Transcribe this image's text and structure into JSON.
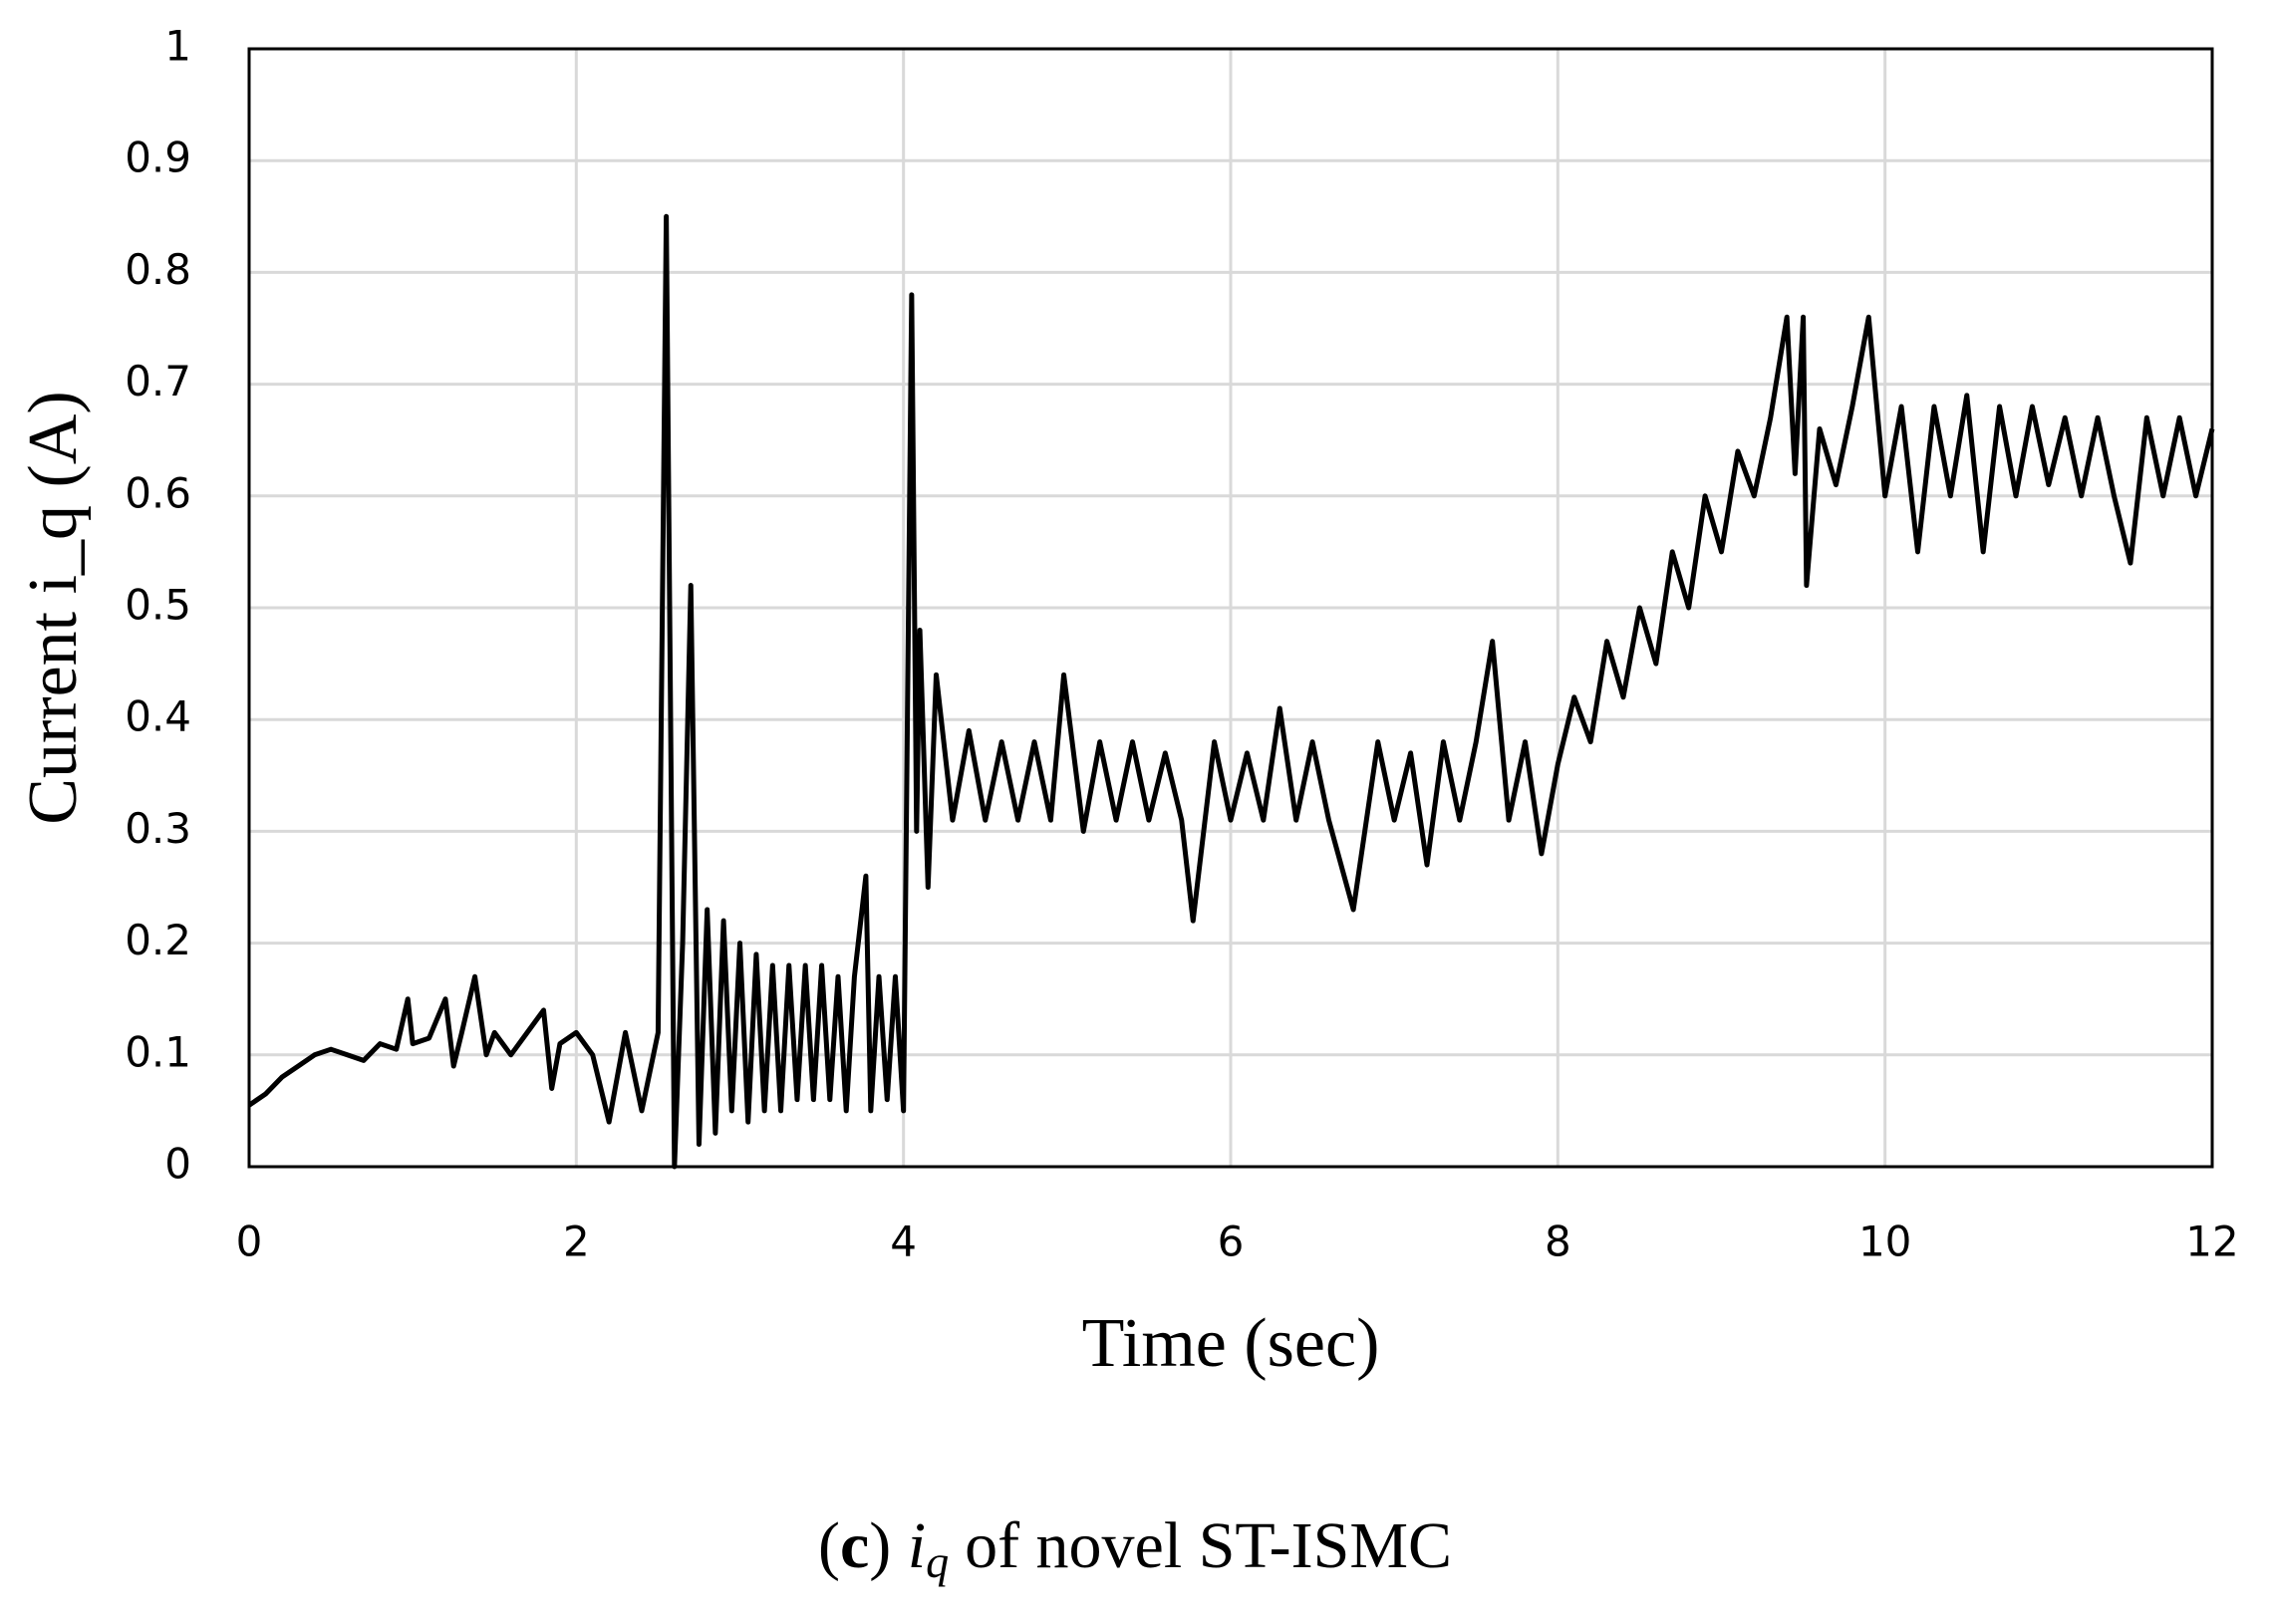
{
  "chart_data": {
    "type": "line",
    "xlabel": "Time (sec)",
    "ylabel": "Current i_q (A)",
    "caption": {
      "open": "(",
      "label": "c",
      "close": ")",
      "symbol": "i",
      "subscript": "q",
      "rest": "of novel ST-ISMC"
    },
    "x": [
      0,
      0.1,
      0.2,
      0.3,
      0.4,
      0.5,
      0.6,
      0.7,
      0.8,
      0.9,
      0.97,
      1.0,
      1.1,
      1.2,
      1.25,
      1.3,
      1.38,
      1.45,
      1.5,
      1.6,
      1.7,
      1.8,
      1.85,
      1.9,
      2.0,
      2.1,
      2.2,
      2.3,
      2.4,
      2.5,
      2.55,
      2.6,
      2.65,
      2.7,
      2.75,
      2.8,
      2.85,
      2.9,
      2.95,
      3.0,
      3.05,
      3.1,
      3.15,
      3.2,
      3.25,
      3.3,
      3.35,
      3.4,
      3.45,
      3.5,
      3.55,
      3.6,
      3.65,
      3.7,
      3.77,
      3.8,
      3.85,
      3.9,
      3.95,
      4.0,
      4.05,
      4.08,
      4.1,
      4.15,
      4.2,
      4.3,
      4.4,
      4.5,
      4.6,
      4.7,
      4.8,
      4.9,
      4.98,
      5.1,
      5.2,
      5.3,
      5.4,
      5.5,
      5.6,
      5.7,
      5.77,
      5.9,
      6.0,
      6.1,
      6.2,
      6.3,
      6.4,
      6.5,
      6.6,
      6.75,
      6.9,
      7.0,
      7.1,
      7.2,
      7.3,
      7.4,
      7.5,
      7.6,
      7.7,
      7.8,
      7.9,
      8.0,
      8.1,
      8.2,
      8.3,
      8.4,
      8.5,
      8.6,
      8.7,
      8.8,
      8.9,
      9.0,
      9.1,
      9.2,
      9.3,
      9.4,
      9.45,
      9.5,
      9.52,
      9.6,
      9.7,
      9.8,
      9.9,
      10.0,
      10.1,
      10.2,
      10.3,
      10.4,
      10.5,
      10.6,
      10.7,
      10.8,
      10.9,
      11.0,
      11.1,
      11.2,
      11.3,
      11.4,
      11.5,
      11.6,
      11.7,
      11.8,
      11.9,
      12.0
    ],
    "series": [
      {
        "color": "#000000",
        "values": [
          0.055,
          0.065,
          0.08,
          0.09,
          0.1,
          0.105,
          0.1,
          0.095,
          0.11,
          0.105,
          0.15,
          0.11,
          0.115,
          0.15,
          0.09,
          0.12,
          0.17,
          0.1,
          0.12,
          0.1,
          0.12,
          0.14,
          0.07,
          0.11,
          0.12,
          0.1,
          0.04,
          0.12,
          0.05,
          0.12,
          0.85,
          0,
          0.2,
          0.52,
          0.02,
          0.23,
          0.03,
          0.22,
          0.05,
          0.2,
          0.04,
          0.19,
          0.05,
          0.18,
          0.05,
          0.18,
          0.06,
          0.18,
          0.06,
          0.18,
          0.06,
          0.17,
          0.05,
          0.17,
          0.26,
          0.05,
          0.17,
          0.06,
          0.17,
          0.05,
          0.78,
          0.3,
          0.48,
          0.25,
          0.44,
          0.31,
          0.39,
          0.31,
          0.38,
          0.31,
          0.38,
          0.31,
          0.44,
          0.3,
          0.38,
          0.31,
          0.38,
          0.31,
          0.37,
          0.31,
          0.22,
          0.38,
          0.31,
          0.37,
          0.31,
          0.41,
          0.31,
          0.38,
          0.31,
          0.23,
          0.38,
          0.31,
          0.37,
          0.27,
          0.38,
          0.31,
          0.38,
          0.47,
          0.31,
          0.38,
          0.28,
          0.36,
          0.42,
          0.38,
          0.47,
          0.42,
          0.5,
          0.45,
          0.55,
          0.5,
          0.6,
          0.55,
          0.64,
          0.6,
          0.67,
          0.76,
          0.62,
          0.76,
          0.52,
          0.66,
          0.61,
          0.68,
          0.76,
          0.6,
          0.68,
          0.55,
          0.68,
          0.6,
          0.69,
          0.55,
          0.68,
          0.6,
          0.68,
          0.61,
          0.67,
          0.6,
          0.67,
          0.6,
          0.54,
          0.67,
          0.6,
          0.67,
          0.6,
          0.66
        ]
      }
    ],
    "xlim": [
      0,
      12
    ],
    "xticks": [
      0,
      2,
      4,
      6,
      8,
      10,
      12
    ],
    "ylim": [
      0,
      1
    ],
    "yticks": [
      0,
      0.1,
      0.2,
      0.3,
      0.4,
      0.5,
      0.6,
      0.7,
      0.8,
      0.9,
      1
    ],
    "grid": true
  }
}
